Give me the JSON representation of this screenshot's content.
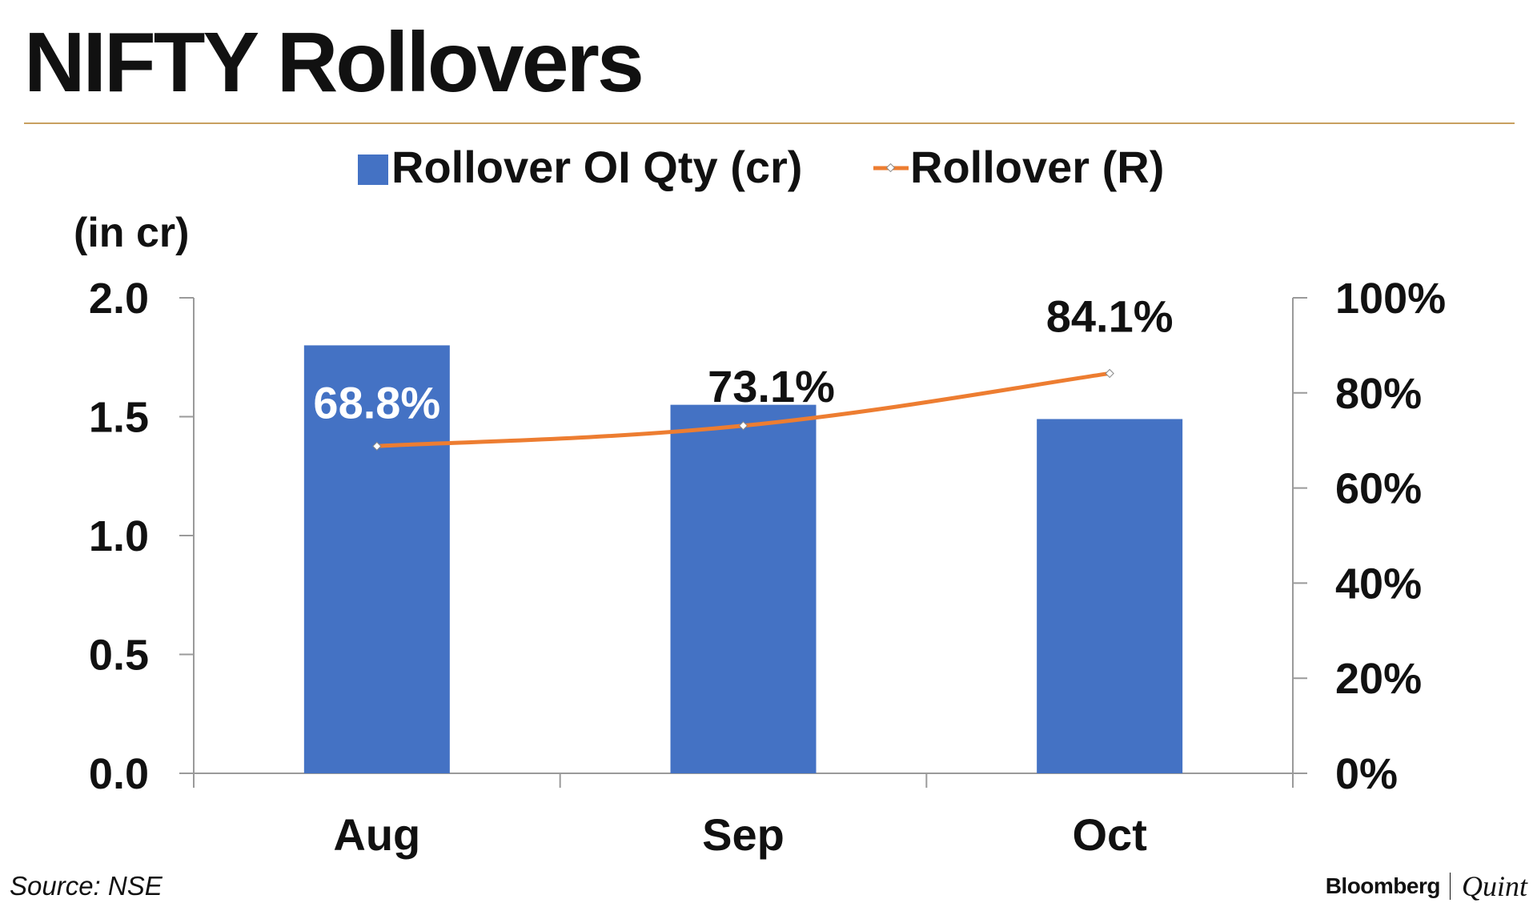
{
  "header": {
    "title": "NIFTY Rollovers"
  },
  "footer": {
    "source": "Source: NSE",
    "brand_primary": "Bloomberg",
    "brand_secondary": "Quint"
  },
  "colors": {
    "bar": "#4472c4",
    "line": "#ed7d31",
    "axis": "#9a9a9a",
    "text": "#111111"
  },
  "chart_data": {
    "type": "bar",
    "categories": [
      "Aug",
      "Sep",
      "Oct"
    ],
    "series": [
      {
        "name": "Rollover OI Qty (cr)",
        "type": "bar",
        "axis": "left",
        "values": [
          1.8,
          1.55,
          1.49
        ]
      },
      {
        "name": "Rollover (R)",
        "type": "line",
        "axis": "right",
        "values": [
          68.8,
          73.1,
          84.1
        ],
        "labels": [
          "68.8%",
          "73.1%",
          "84.1%"
        ]
      }
    ],
    "y_left": {
      "label": "(in cr)",
      "ylim": [
        0,
        2.0
      ],
      "ticks": [
        0.0,
        0.5,
        1.0,
        1.5,
        2.0
      ],
      "tick_labels": [
        "0.0",
        "0.5",
        "1.0",
        "1.5",
        "2.0"
      ]
    },
    "y_right": {
      "ylim": [
        0,
        100
      ],
      "ticks": [
        0,
        20,
        40,
        60,
        80,
        100
      ],
      "tick_labels": [
        "0%",
        "20%",
        "40%",
        "60%",
        "80%",
        "100%"
      ]
    },
    "grid": false,
    "legend": "top-center"
  }
}
